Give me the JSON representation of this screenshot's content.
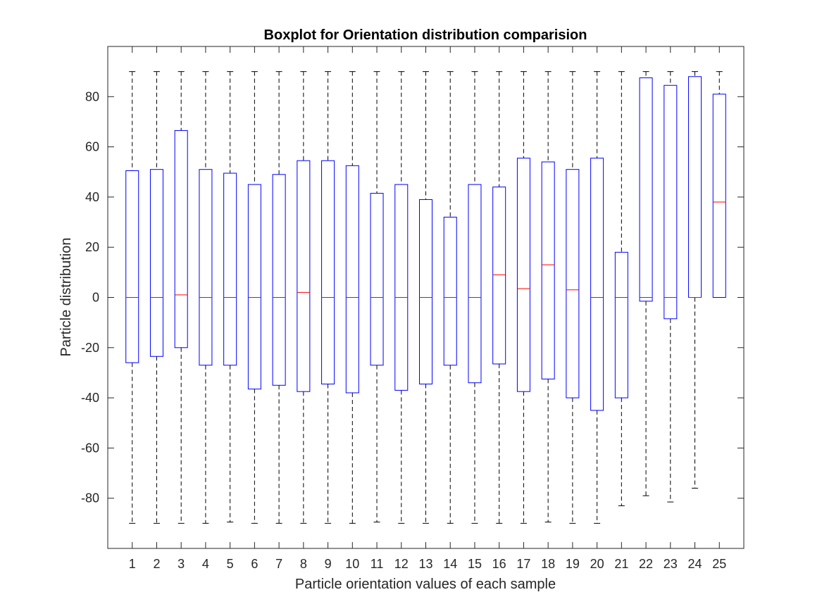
{
  "chart_data": {
    "type": "boxplot",
    "title": "Boxplot for Orientation distribution comparision",
    "xlabel": "Particle orientation values of each sample",
    "ylabel": "Particle distribution",
    "ylim": [
      -100,
      100
    ],
    "yticks": [
      -80,
      -60,
      -40,
      -20,
      0,
      20,
      40,
      60,
      80
    ],
    "grid": false,
    "colors": {
      "box": "#0000ff",
      "median": "#ff0000",
      "whisker": "#000000",
      "axes": "#262626"
    },
    "categories": [
      "1",
      "2",
      "3",
      "4",
      "5",
      "6",
      "7",
      "8",
      "9",
      "10",
      "11",
      "12",
      "13",
      "14",
      "15",
      "16",
      "17",
      "18",
      "19",
      "20",
      "21",
      "22",
      "23",
      "24",
      "25"
    ],
    "boxes": [
      {
        "label": "1",
        "whisker_low": -90,
        "q1": -26,
        "median": 0,
        "q3": 50.5,
        "whisker_high": 90
      },
      {
        "label": "2",
        "whisker_low": -90,
        "q1": -23.5,
        "median": 0,
        "q3": 51,
        "whisker_high": 90
      },
      {
        "label": "3",
        "whisker_low": -90,
        "q1": -20,
        "median": 1,
        "q3": 66.5,
        "whisker_high": 90
      },
      {
        "label": "4",
        "whisker_low": -90,
        "q1": -27,
        "median": 0,
        "q3": 51,
        "whisker_high": 90
      },
      {
        "label": "5",
        "whisker_low": -89.5,
        "q1": -27,
        "median": 0,
        "q3": 49.5,
        "whisker_high": 90
      },
      {
        "label": "6",
        "whisker_low": -90,
        "q1": -36.5,
        "median": 0,
        "q3": 45,
        "whisker_high": 90
      },
      {
        "label": "7",
        "whisker_low": -90,
        "q1": -35,
        "median": 0,
        "q3": 49,
        "whisker_high": 90
      },
      {
        "label": "8",
        "whisker_low": -90,
        "q1": -37.5,
        "median": 2,
        "q3": 54.5,
        "whisker_high": 90
      },
      {
        "label": "9",
        "whisker_low": -90,
        "q1": -34.5,
        "median": 0,
        "q3": 54.5,
        "whisker_high": 90
      },
      {
        "label": "10",
        "whisker_low": -90,
        "q1": -38,
        "median": 0,
        "q3": 52.5,
        "whisker_high": 90
      },
      {
        "label": "11",
        "whisker_low": -89.5,
        "q1": -27,
        "median": 0,
        "q3": 41.5,
        "whisker_high": 90
      },
      {
        "label": "12",
        "whisker_low": -90,
        "q1": -37,
        "median": 0,
        "q3": 45,
        "whisker_high": 90
      },
      {
        "label": "13",
        "whisker_low": -90,
        "q1": -34.5,
        "median": 0,
        "q3": 39,
        "whisker_high": 90
      },
      {
        "label": "14",
        "whisker_low": -90,
        "q1": -27,
        "median": 0,
        "q3": 32,
        "whisker_high": 90
      },
      {
        "label": "15",
        "whisker_low": -90,
        "q1": -34,
        "median": 0,
        "q3": 45,
        "whisker_high": 90
      },
      {
        "label": "16",
        "whisker_low": -90,
        "q1": -26.5,
        "median": 9,
        "q3": 44,
        "whisker_high": 90
      },
      {
        "label": "17",
        "whisker_low": -90,
        "q1": -37.5,
        "median": 3.5,
        "q3": 55.5,
        "whisker_high": 90
      },
      {
        "label": "18",
        "whisker_low": -89.5,
        "q1": -32.5,
        "median": 13,
        "q3": 54,
        "whisker_high": 90
      },
      {
        "label": "19",
        "whisker_low": -90,
        "q1": -40,
        "median": 3,
        "q3": 51,
        "whisker_high": 90
      },
      {
        "label": "20",
        "whisker_low": -90,
        "q1": -45,
        "median": 0,
        "q3": 55.5,
        "whisker_high": 90
      },
      {
        "label": "21",
        "whisker_low": -83,
        "q1": -40,
        "median": 0,
        "q3": 18,
        "whisker_high": 90
      },
      {
        "label": "22",
        "whisker_low": -79,
        "q1": -1.5,
        "median": 0,
        "q3": 87.5,
        "whisker_high": 90
      },
      {
        "label": "23",
        "whisker_low": -81.5,
        "q1": -8.5,
        "median": 0,
        "q3": 84.5,
        "whisker_high": 90
      },
      {
        "label": "24",
        "whisker_low": -76,
        "q1": 0,
        "median": 0,
        "q3": 88,
        "whisker_high": 90
      },
      {
        "label": "25",
        "whisker_low": 0,
        "q1": 0,
        "median": 38,
        "q3": 81,
        "whisker_high": 90
      }
    ]
  }
}
